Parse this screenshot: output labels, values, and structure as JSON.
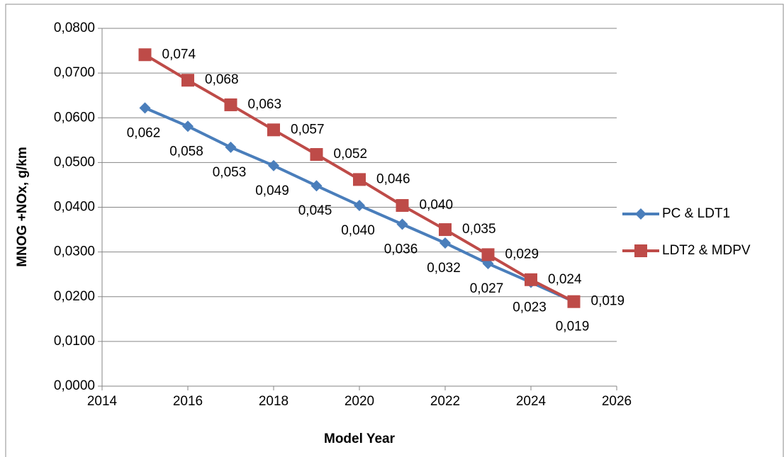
{
  "chart_data": {
    "type": "line",
    "xlabel": "Model Year",
    "ylabel": "MNOG +NOx, g/km",
    "x": [
      2015,
      2016,
      2017,
      2018,
      2019,
      2020,
      2021,
      2022,
      2023,
      2024,
      2025
    ],
    "series": [
      {
        "name": "PC & LDT1",
        "color": "#4a7ebb",
        "marker": "diamond",
        "values": [
          0.0622,
          0.0581,
          0.0534,
          0.0493,
          0.0448,
          0.0404,
          0.0362,
          0.032,
          0.0274,
          0.0232,
          0.0189
        ],
        "value_labels": [
          "0,062",
          "0,058",
          "0,053",
          "0,049",
          "0,045",
          "0,040",
          "0,036",
          "0,032",
          "0,027",
          "0,023",
          "0,019"
        ]
      },
      {
        "name": "LDT2 & MDPV",
        "color": "#be4b48",
        "marker": "square",
        "values": [
          0.0741,
          0.0684,
          0.0629,
          0.0573,
          0.0518,
          0.0462,
          0.0404,
          0.035,
          0.0294,
          0.0238,
          0.0189
        ],
        "value_labels": [
          "0,074",
          "0,068",
          "0,063",
          "0,057",
          "0,052",
          "0,046",
          "0,040",
          "0,035",
          "0,029",
          "0,024",
          "0,019"
        ]
      }
    ],
    "xlim": [
      2014,
      2026
    ],
    "xticks": [
      2014,
      2016,
      2018,
      2020,
      2022,
      2024,
      2026
    ],
    "ylim": [
      0,
      0.08
    ],
    "yticks": [
      {
        "value": 0,
        "label": "0,0000"
      },
      {
        "value": 0.01,
        "label": "0,0100"
      },
      {
        "value": 0.02,
        "label": "0,0200"
      },
      {
        "value": 0.03,
        "label": "0,0300"
      },
      {
        "value": 0.04,
        "label": "0,0400"
      },
      {
        "value": 0.05,
        "label": "0,0500"
      },
      {
        "value": 0.06,
        "label": "0,0600"
      },
      {
        "value": 0.07,
        "label": "0,0700"
      },
      {
        "value": 0.08,
        "label": "0,0800"
      }
    ],
    "grid": true,
    "legend": "right"
  }
}
